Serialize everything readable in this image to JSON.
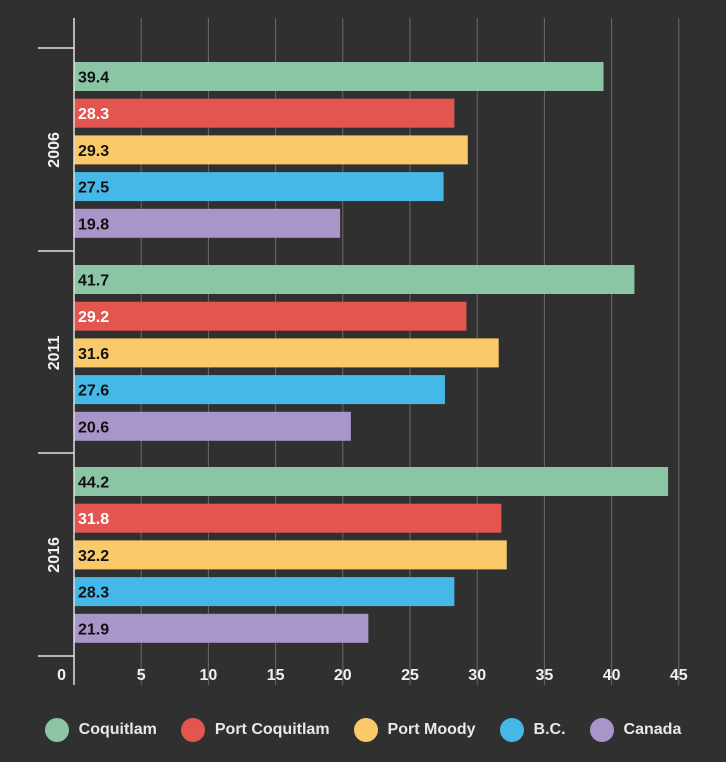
{
  "chart_data": {
    "type": "bar",
    "orientation": "horizontal",
    "categories": [
      "2006",
      "2011",
      "2016"
    ],
    "series": [
      {
        "name": "Coquitlam",
        "color": "#8cc5a6",
        "values": [
          39.4,
          41.7,
          44.2
        ]
      },
      {
        "name": "Port Coquitlam",
        "color": "#e3554f",
        "values": [
          28.3,
          29.2,
          31.8
        ]
      },
      {
        "name": "Port Moody",
        "color": "#f9c96a",
        "values": [
          29.3,
          31.6,
          32.2
        ]
      },
      {
        "name": "B.C.",
        "color": "#45b8e8",
        "values": [
          27.5,
          27.6,
          28.3
        ]
      },
      {
        "name": "Canada",
        "color": "#a895c9",
        "values": [
          19.8,
          20.6,
          21.9
        ]
      }
    ],
    "xlim": [
      0,
      45
    ],
    "xticks": [
      0,
      5,
      10,
      15,
      20,
      25,
      30,
      35,
      40,
      45
    ],
    "grid": true,
    "legend_position": "bottom"
  }
}
